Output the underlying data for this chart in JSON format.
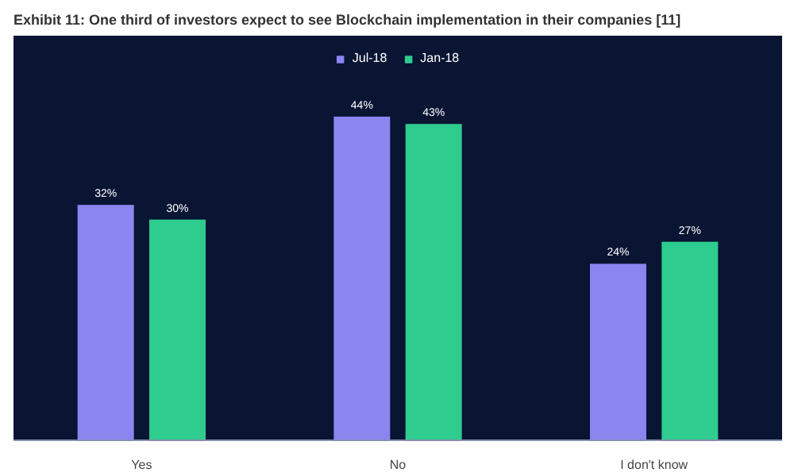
{
  "chart_data": {
    "type": "bar",
    "title": "Exhibit 11: One third of investors expect to see Blockchain implementation in their companies [11]",
    "categories": [
      "Yes",
      "No",
      "I don't know"
    ],
    "series": [
      {
        "name": "Jul-18",
        "color": "#8b85f0",
        "values": [
          32,
          44,
          24
        ],
        "value_labels": [
          "32%",
          "44%",
          "24%"
        ]
      },
      {
        "name": "Jan-18",
        "color": "#2ecc8f",
        "values": [
          30,
          43,
          27
        ],
        "value_labels": [
          "30%",
          "43%",
          "27%"
        ]
      }
    ],
    "legend": "top",
    "grid": false
  }
}
